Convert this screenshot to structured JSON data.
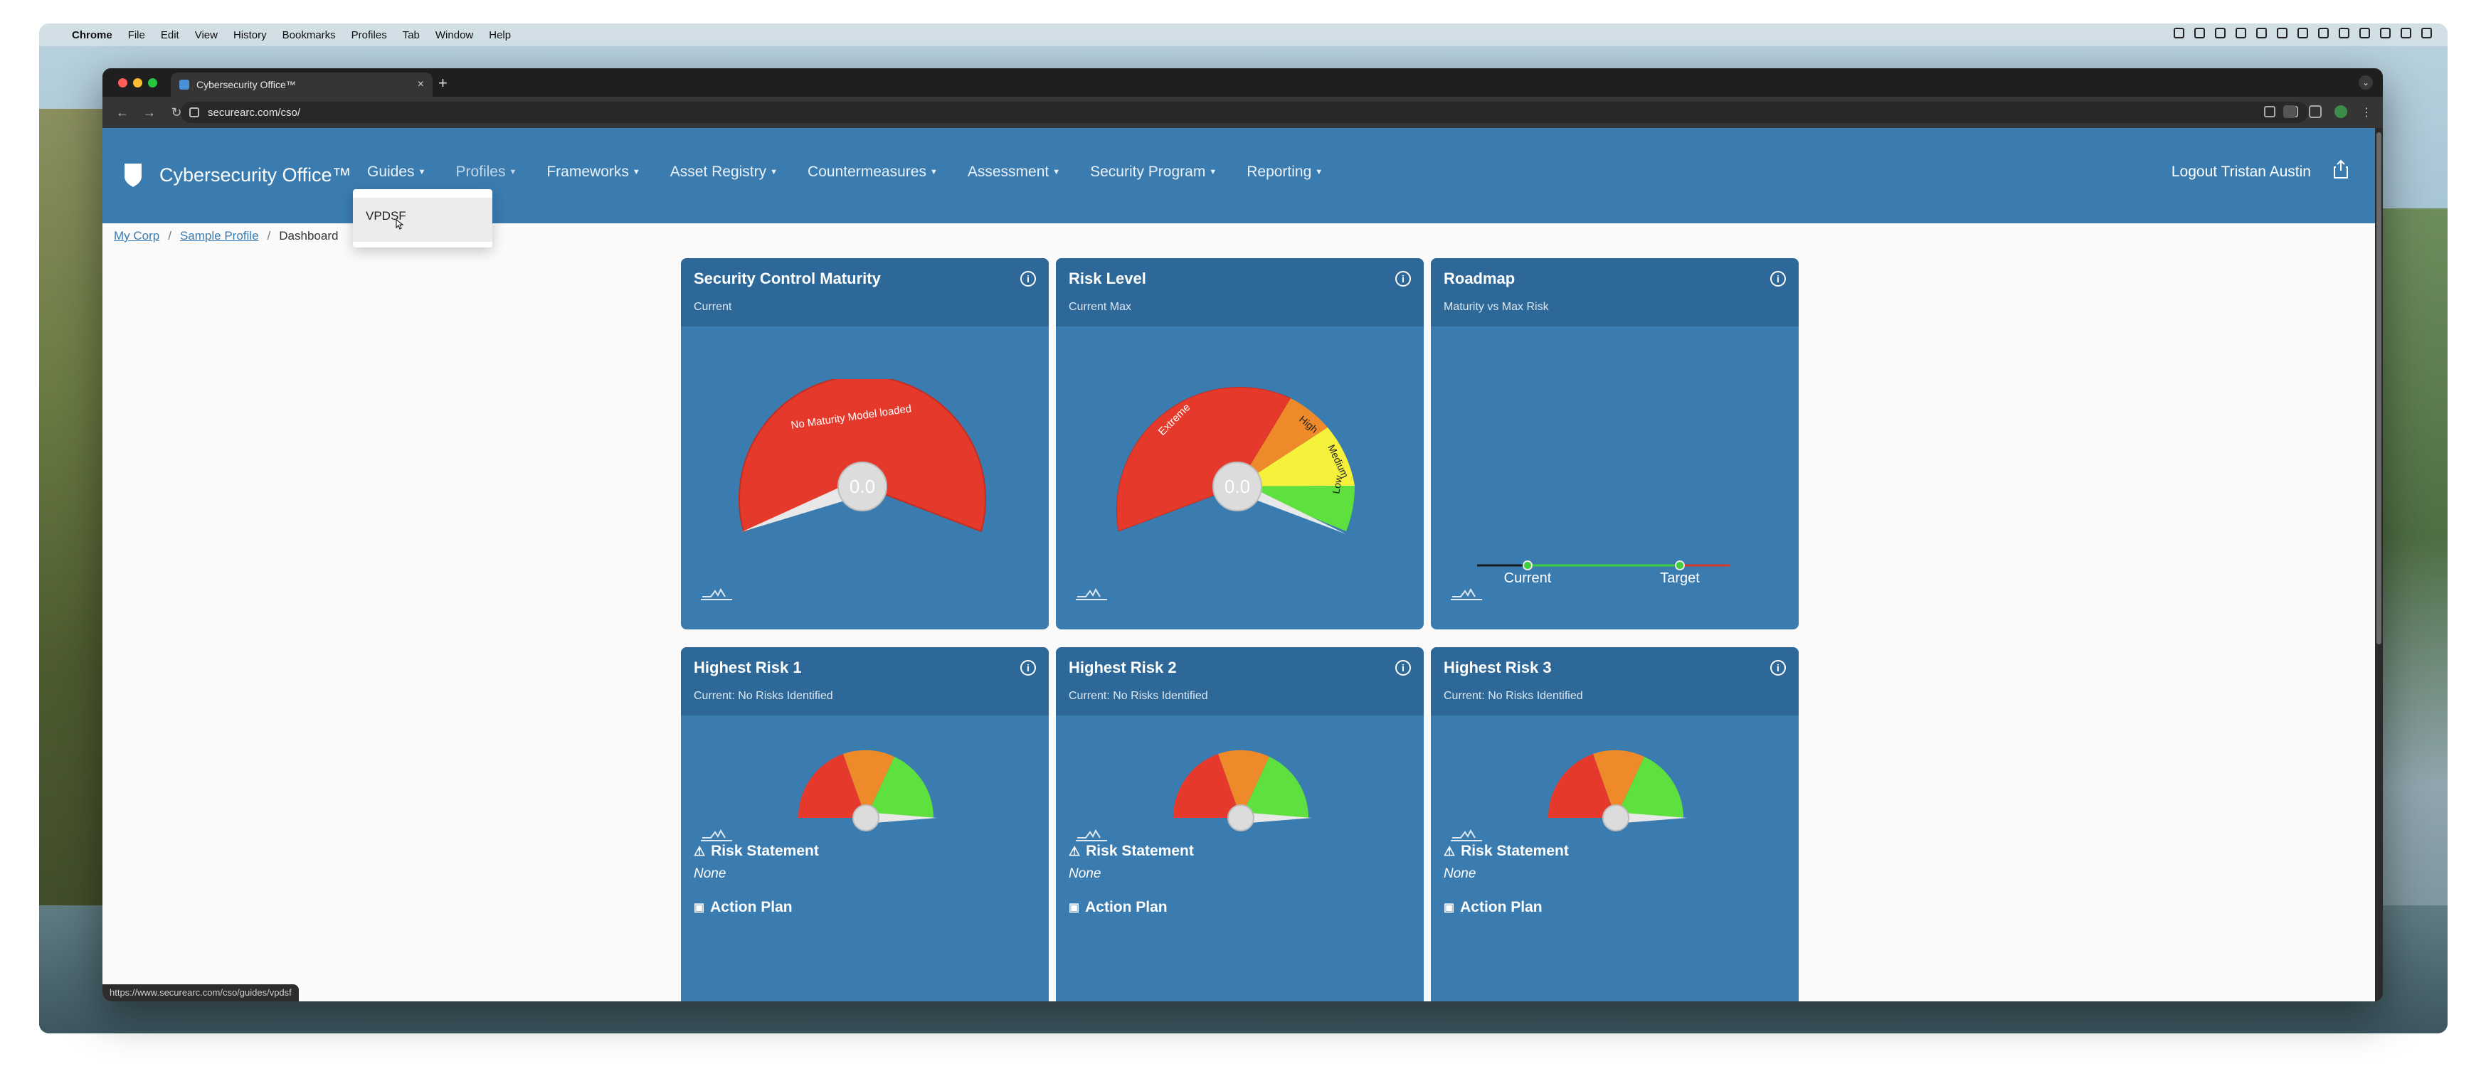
{
  "mac_menubar": {
    "app": "Chrome",
    "items": [
      "File",
      "Edit",
      "View",
      "History",
      "Bookmarks",
      "Profiles",
      "Tab",
      "Window",
      "Help"
    ]
  },
  "browser": {
    "tab_title": "Cybersecurity Office™",
    "url": "securearc.com/cso/",
    "status_url": "https://www.securearc.com/cso/guides/vpdsf"
  },
  "navbar": {
    "brand": "Cybersecurity Office™",
    "links": [
      {
        "label": "Guides",
        "active": true
      },
      {
        "label": "Profiles",
        "dim": true
      },
      {
        "label": "Frameworks"
      },
      {
        "label": "Asset Registry"
      },
      {
        "label": "Countermeasures"
      },
      {
        "label": "Assessment"
      },
      {
        "label": "Security Program"
      },
      {
        "label": "Reporting"
      }
    ],
    "logout": "Logout Tristan Austin"
  },
  "dropdown": {
    "items": [
      "VPDSF"
    ]
  },
  "breadcrumb": {
    "items": [
      "My Corp",
      "Sample Profile",
      "Dashboard"
    ]
  },
  "cards": {
    "maturity": {
      "title": "Security Control Maturity",
      "subtitle": "Current",
      "gauge_value": "0.0",
      "arc_label": "No Maturity Model loaded"
    },
    "risk_level": {
      "title": "Risk Level",
      "subtitle": "Current Max",
      "gauge_value": "0.0",
      "segments": [
        "Extreme",
        "High",
        "Medium",
        "Low"
      ]
    },
    "roadmap": {
      "title": "Roadmap",
      "subtitle": "Maturity vs Max Risk",
      "current_label": "Current",
      "target_label": "Target"
    },
    "risk1": {
      "title": "Highest Risk 1",
      "subtitle": "Current: No Risks Identified",
      "risk_statement_label": "Risk Statement",
      "risk_statement_value": "None",
      "action_plan_label": "Action Plan"
    },
    "risk2": {
      "title": "Highest Risk 2",
      "subtitle": "Current: No Risks Identified",
      "risk_statement_label": "Risk Statement",
      "risk_statement_value": "None",
      "action_plan_label": "Action Plan"
    },
    "risk3": {
      "title": "Highest Risk 3",
      "subtitle": "Current: No Risks Identified",
      "risk_statement_label": "Risk Statement",
      "risk_statement_value": "None",
      "action_plan_label": "Action Plan"
    }
  },
  "colors": {
    "nav_blue": "#3a7bb0",
    "extreme": "#e53a2b",
    "high": "#ee8a2a",
    "medium": "#f6f23c",
    "low": "#5ee03f"
  }
}
